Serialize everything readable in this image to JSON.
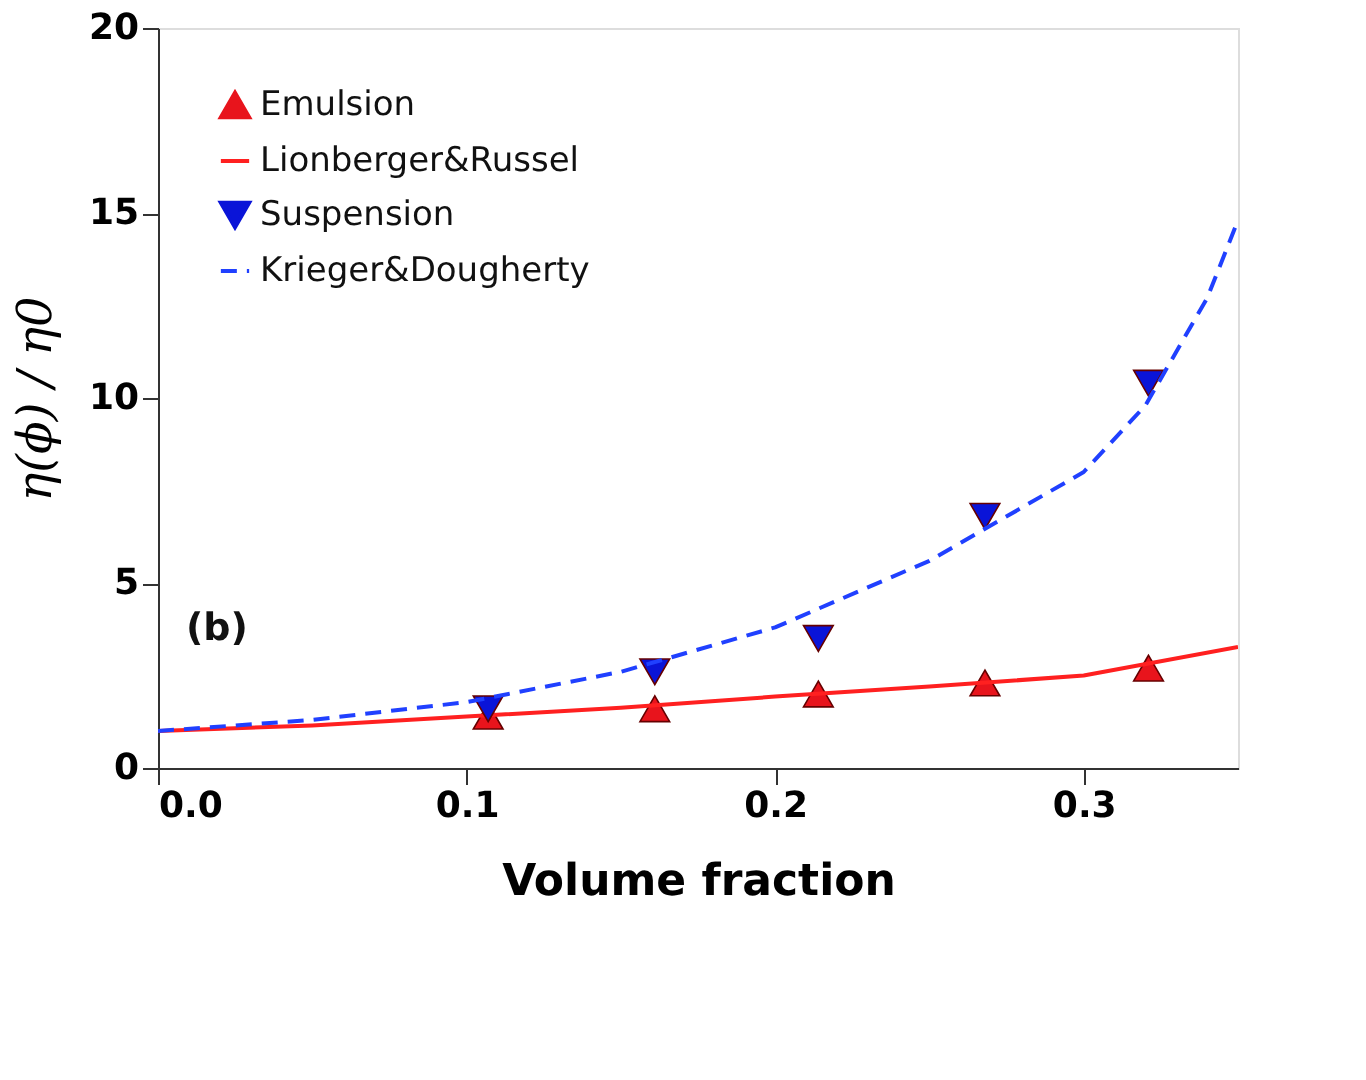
{
  "chart_data": {
    "type": "scatter",
    "xlabel": "Volume fraction",
    "ylabel": "η(ϕ) / η0",
    "xlim": [
      0,
      0.35
    ],
    "ylim": [
      0,
      20
    ],
    "xticks": [
      {
        "value": 0,
        "label": "0.0"
      },
      {
        "value": 0.1,
        "label": "0.1"
      },
      {
        "value": 0.2,
        "label": "0.2"
      },
      {
        "value": 0.3,
        "label": "0.3"
      }
    ],
    "yticks": [
      0,
      5,
      10,
      15,
      20
    ],
    "grid": false,
    "legend": "top left",
    "annotations": [
      "(b)"
    ],
    "series": [
      {
        "name": "Emulsion",
        "marker": "triangle",
        "color": "#e8141c",
        "x": [
          0.107,
          0.161,
          0.214,
          0.268,
          0.321
        ],
        "values": [
          1.4,
          1.6,
          2.0,
          2.3,
          2.7
        ]
      },
      {
        "name": "Lionberger&Russel",
        "type": "line",
        "line_style": "solid",
        "color": "#ff2020",
        "x": [
          0,
          0.05,
          0.1,
          0.15,
          0.2,
          0.25,
          0.3,
          0.35
        ],
        "values": [
          1.0,
          1.15,
          1.39,
          1.63,
          1.93,
          2.2,
          2.5,
          3.27
        ]
      },
      {
        "name": "Suspension",
        "marker": "triangle-down",
        "color": "#0a14d8",
        "x": [
          0.107,
          0.161,
          0.214,
          0.268,
          0.321
        ],
        "values": [
          1.6,
          2.6,
          3.5,
          6.8,
          10.4
        ]
      },
      {
        "name": "Krieger&Dougherty",
        "type": "line",
        "line_style": "dashed",
        "color": "#2040ff",
        "x": [
          0,
          0.05,
          0.1,
          0.15,
          0.2,
          0.25,
          0.3,
          0.32,
          0.34,
          0.35
        ],
        "values": [
          1.0,
          1.3,
          1.78,
          2.6,
          3.8,
          5.6,
          8.0,
          9.8,
          12.7,
          14.8
        ]
      }
    ]
  }
}
